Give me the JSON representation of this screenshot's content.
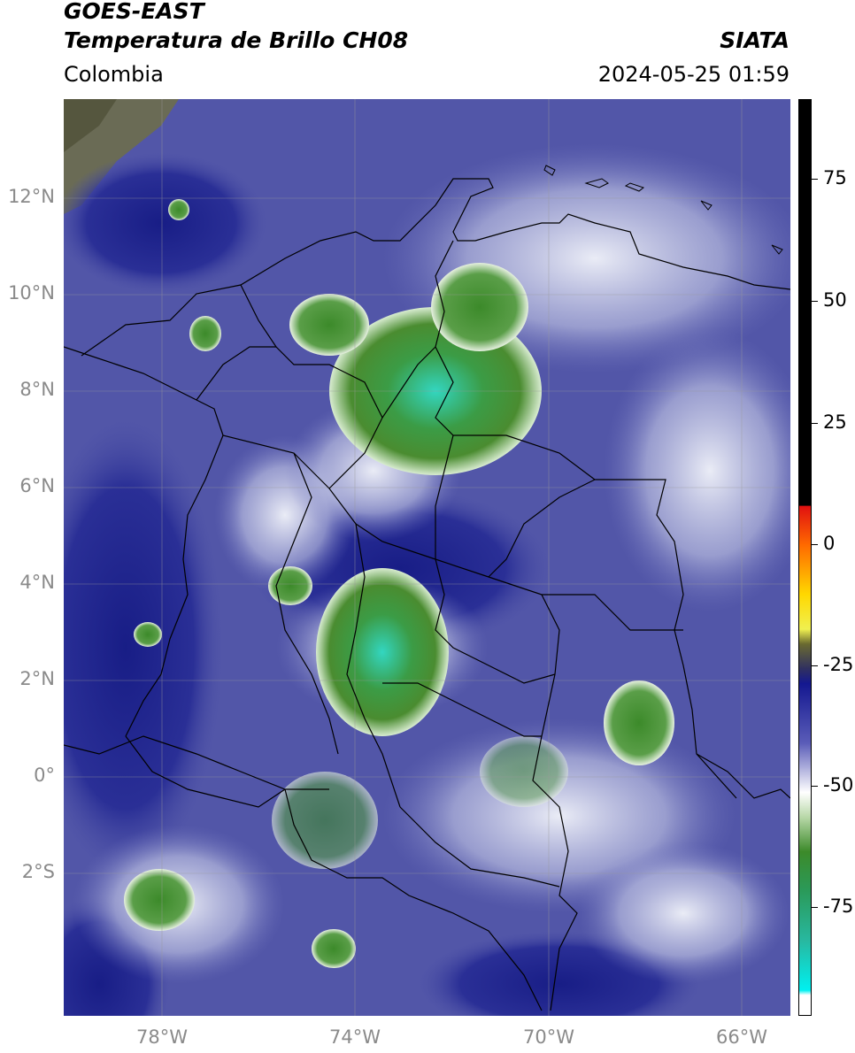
{
  "header": {
    "title_line1": "GOES-EAST",
    "title_line2": "Temperatura de Brillo CH08",
    "region": "Colombia",
    "agency": "SIATA",
    "timestamp": "2024-05-25 01:59"
  },
  "map": {
    "lat_labels": [
      "12°N",
      "10°N",
      "8°N",
      "6°N",
      "4°N",
      "2°N",
      "0°",
      "2°S"
    ],
    "lon_labels": [
      "78°W",
      "74°W",
      "70°W",
      "66°W"
    ],
    "colors": {
      "ocean_land_base": "#4b4fa6",
      "deep_blue": "#1a1f86",
      "cloud_white": "#e8ecf6",
      "cold_green": "#3f8f2e",
      "coldest_cyan": "#2fd8c4",
      "border": "#000000",
      "grid": "#9a9a9a"
    }
  },
  "colorbar": {
    "ticks": [
      "75",
      "50",
      "25",
      "0",
      "-25",
      "-50",
      "-75"
    ],
    "gradient": [
      {
        "value": 90,
        "color": "#000000"
      },
      {
        "value": 8,
        "color": "#000000"
      },
      {
        "value": 7.9,
        "color": "#e01010"
      },
      {
        "value": 0,
        "color": "#ff6a00"
      },
      {
        "value": -10,
        "color": "#ffd800"
      },
      {
        "value": -17,
        "color": "#f0f050"
      },
      {
        "value": -20,
        "color": "#6a6a30"
      },
      {
        "value": -25,
        "color": "#303060"
      },
      {
        "value": -28,
        "color": "#141890"
      },
      {
        "value": -40,
        "color": "#5a5cb8"
      },
      {
        "value": -50,
        "color": "#ffffff"
      },
      {
        "value": -55,
        "color": "#b8d8a8"
      },
      {
        "value": -62,
        "color": "#3c8a2a"
      },
      {
        "value": -70,
        "color": "#2a9a5a"
      },
      {
        "value": -80,
        "color": "#28b8a0"
      },
      {
        "value": -90,
        "color": "#00f0f0"
      },
      {
        "value": -91,
        "color": "#ffffff"
      },
      {
        "value": -95,
        "color": "#ffffff"
      }
    ],
    "range": [
      -95,
      90
    ]
  }
}
